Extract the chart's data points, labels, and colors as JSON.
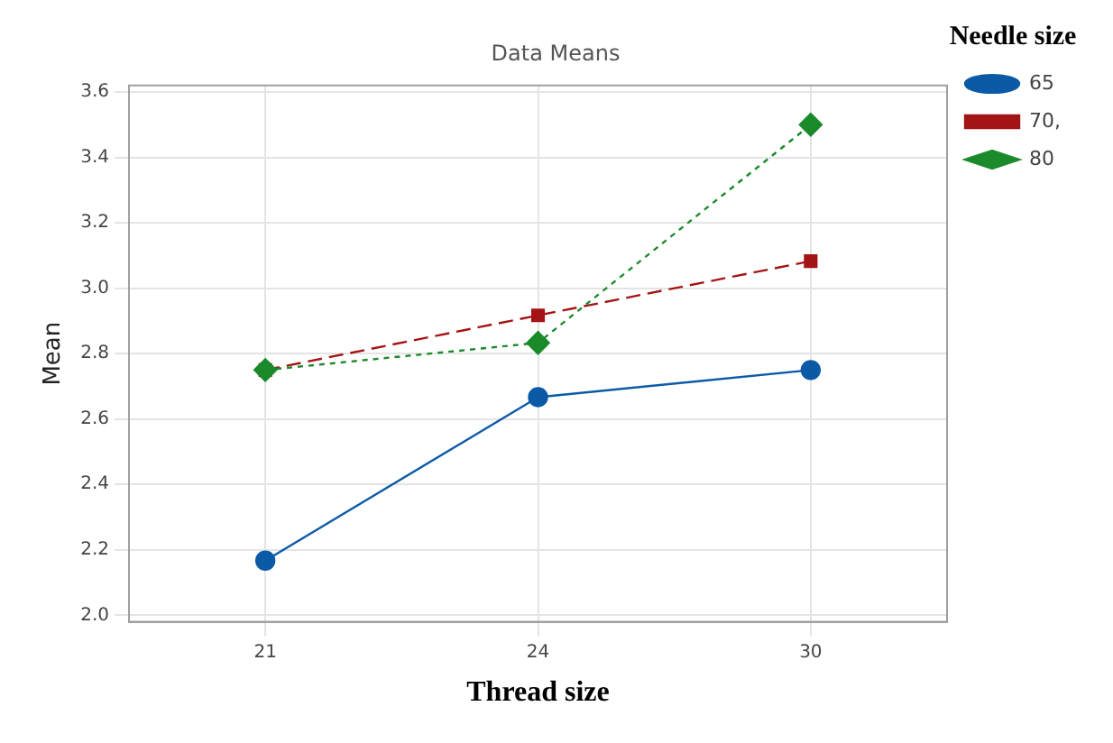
{
  "chart_data": {
    "type": "line",
    "title": "Data Means",
    "xlabel": "Thread size",
    "ylabel": "Mean",
    "legend_title": "Needle size",
    "categories": [
      "21",
      "24",
      "30"
    ],
    "series": [
      {
        "name": "65",
        "color": "#0b5aa6",
        "values": [
          2.167,
          2.667,
          2.75
        ],
        "marker": "circle",
        "line_style": "solid"
      },
      {
        "name": "70,",
        "color": "#a31515",
        "values": [
          2.75,
          2.917,
          3.083
        ],
        "marker": "square",
        "line_style": "dashed"
      },
      {
        "name": "80",
        "color": "#1a8a2a",
        "values": [
          2.75,
          2.833,
          3.5
        ],
        "marker": "diamond",
        "line_style": "dotted"
      }
    ],
    "ylim": [
      1.98,
      3.62
    ],
    "yticks": [
      {
        "value": 2,
        "label": "2.0"
      },
      {
        "value": 2.2,
        "label": "2.2"
      },
      {
        "value": 2.4,
        "label": "2.4"
      },
      {
        "value": 2.6,
        "label": "2.6"
      },
      {
        "value": 2.8,
        "label": "2.8"
      },
      {
        "value": 3,
        "label": "3.0"
      },
      {
        "value": 3.2,
        "label": "3.2"
      },
      {
        "value": 3.4,
        "label": "3.4"
      },
      {
        "value": 3.6,
        "label": "3.6"
      }
    ],
    "grid": true,
    "legend": "top right"
  }
}
